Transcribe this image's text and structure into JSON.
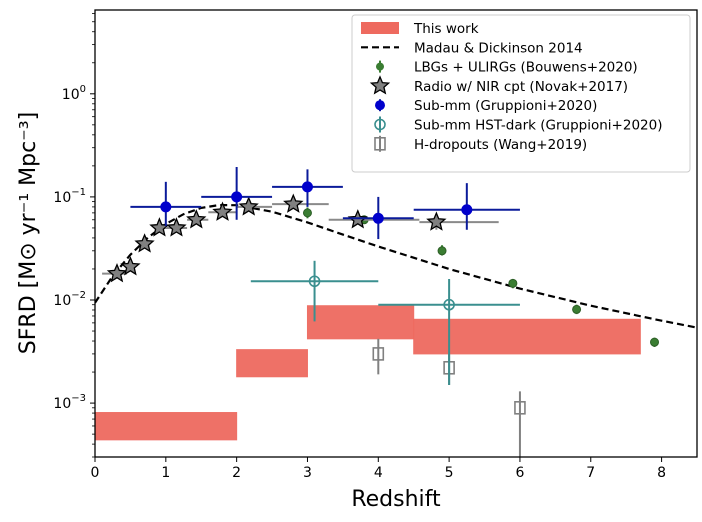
{
  "chart_data": {
    "type": "scatter",
    "xlabel": "Redshift",
    "ylabel": "SFRD [M⊙ yr⁻¹ Mpc⁻³]",
    "xlim": [
      0,
      8.5
    ],
    "ylim": [
      0.0003,
      6.5
    ],
    "yscale": "log",
    "grid": false,
    "legend_position": "top-right",
    "x_ticks": [
      "0",
      "1",
      "2",
      "3",
      "4",
      "5",
      "6",
      "7",
      "8"
    ],
    "y_ticks": [
      {
        "base": "10",
        "exp": "0",
        "value": 1
      },
      {
        "base": "10",
        "exp": "−1",
        "value": 0.1
      },
      {
        "base": "10",
        "exp": "−2",
        "value": 0.01
      },
      {
        "base": "10",
        "exp": "−3",
        "value": 0.001
      }
    ],
    "series": [
      {
        "name": "This work",
        "kind": "band",
        "color": "#ee6a5f",
        "bins": [
          {
            "z": [
              0,
              2
            ],
            "y": [
              0.00044,
              0.00081
            ]
          },
          {
            "z": [
              2,
              3
            ],
            "y": [
              0.0018,
              0.0033
            ]
          },
          {
            "z": [
              3,
              4.5
            ],
            "y": [
              0.0042,
              0.0088
            ]
          },
          {
            "z": [
              4.5,
              7.7
            ],
            "y": [
              0.003,
              0.0065
            ]
          }
        ]
      },
      {
        "name": "Madau & Dickinson 2014",
        "kind": "dashed-line",
        "color": "#000000",
        "x": [
          0,
          0.25,
          0.5,
          0.75,
          1,
          1.25,
          1.5,
          1.75,
          2,
          2.5,
          3,
          3.5,
          4,
          5,
          6,
          7,
          8,
          8.5
        ],
        "y": [
          0.0094,
          0.0171,
          0.0275,
          0.0404,
          0.0546,
          0.0679,
          0.0782,
          0.0833,
          0.0831,
          0.0719,
          0.0566,
          0.0431,
          0.033,
          0.02,
          0.0129,
          0.0088,
          0.0063,
          0.0054
        ]
      },
      {
        "name": "LBGs + ULIRGs (Bouwens+2020)",
        "kind": "circle",
        "color": "#3a7d32",
        "points": [
          {
            "x": 3.0,
            "y": 0.07,
            "ylo": 0.062,
            "yhi": 0.079
          },
          {
            "x": 3.8,
            "y": 0.06,
            "ylo": 0.055,
            "yhi": 0.066
          },
          {
            "x": 4.9,
            "y": 0.03,
            "ylo": 0.027,
            "yhi": 0.034
          },
          {
            "x": 5.9,
            "y": 0.0145,
            "ylo": 0.013,
            "yhi": 0.016
          },
          {
            "x": 6.8,
            "y": 0.0081,
            "ylo": 0.0073,
            "yhi": 0.009
          },
          {
            "x": 7.9,
            "y": 0.0039,
            "ylo": 0.0035,
            "yhi": 0.0043
          }
        ]
      },
      {
        "name": "Radio w/ NIR cpt (Novak+2017)",
        "kind": "star",
        "color": "#808080",
        "points": [
          {
            "x": 0.31,
            "y": 0.018,
            "xlo": 0.1,
            "xhi": 0.45
          },
          {
            "x": 0.5,
            "y": 0.021,
            "xlo": 0.45,
            "xhi": 0.55
          },
          {
            "x": 0.7,
            "y": 0.035,
            "xlo": 0.62,
            "xhi": 0.78
          },
          {
            "x": 0.91,
            "y": 0.05,
            "xlo": 0.85,
            "xhi": 1.0
          },
          {
            "x": 1.15,
            "y": 0.05,
            "xlo": 1.0,
            "xhi": 1.3
          },
          {
            "x": 1.43,
            "y": 0.06,
            "xlo": 1.3,
            "xhi": 1.6
          },
          {
            "x": 1.8,
            "y": 0.071,
            "xlo": 1.6,
            "xhi": 2.0
          },
          {
            "x": 2.17,
            "y": 0.08,
            "xlo": 2.0,
            "xhi": 2.5
          },
          {
            "x": 2.8,
            "y": 0.085,
            "xlo": 2.5,
            "xhi": 3.3
          },
          {
            "x": 3.71,
            "y": 0.06,
            "xlo": 3.3,
            "xhi": 4.58
          },
          {
            "x": 4.82,
            "y": 0.057,
            "xlo": 4.58,
            "xhi": 5.7,
            "ylo": 0.048,
            "yhi": 0.064
          }
        ]
      },
      {
        "name": "Sub-mm (Gruppioni+2020)",
        "kind": "filled-circle",
        "color": "#0000cc",
        "points": [
          {
            "x": 1.0,
            "y": 0.08,
            "xlo": 0.5,
            "xhi": 1.5,
            "ylo": 0.052,
            "yhi": 0.14
          },
          {
            "x": 2.0,
            "y": 0.1,
            "xlo": 1.5,
            "xhi": 2.5,
            "ylo": 0.06,
            "yhi": 0.195
          },
          {
            "x": 3.0,
            "y": 0.125,
            "xlo": 2.5,
            "xhi": 3.5,
            "ylo": 0.08,
            "yhi": 0.185
          },
          {
            "x": 4.0,
            "y": 0.062,
            "xlo": 3.5,
            "xhi": 4.5,
            "ylo": 0.039,
            "yhi": 0.1
          },
          {
            "x": 5.25,
            "y": 0.075,
            "xlo": 4.5,
            "xhi": 6.0,
            "ylo": 0.048,
            "yhi": 0.136
          }
        ]
      },
      {
        "name": "Sub-mm HST-dark (Gruppioni+2020)",
        "kind": "open-circle",
        "color": "#3a8f8f",
        "points": [
          {
            "x": 3.1,
            "y": 0.0152,
            "xlo": 2.2,
            "xhi": 4.0,
            "ylo": 0.0062,
            "yhi": 0.024
          },
          {
            "x": 5.0,
            "y": 0.009,
            "xlo": 4.0,
            "xhi": 6.0,
            "ylo": 0.0015,
            "yhi": 0.016
          }
        ]
      },
      {
        "name": "H-dropouts (Wang+2019)",
        "kind": "open-square",
        "color": "#808080",
        "points": [
          {
            "x": 4.0,
            "y": 0.003,
            "ylo": 0.0019,
            "yhi": 0.0042
          },
          {
            "x": 5.0,
            "y": 0.0022,
            "ylo": 0.0015,
            "yhi": 0.003
          },
          {
            "x": 6.0,
            "y": 0.0009,
            "ylo": 0.0003,
            "yhi": 0.0013
          }
        ]
      }
    ]
  }
}
